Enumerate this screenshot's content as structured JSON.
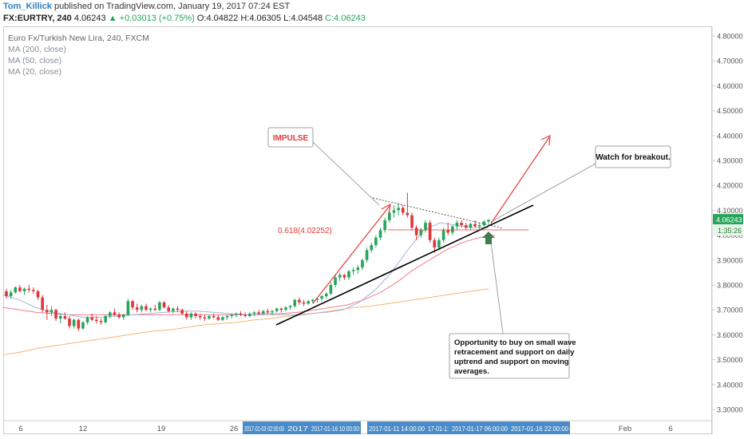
{
  "header": {
    "user": "Tom_Killick",
    "published": "published on TradingView.com, January 19, 2017 07:24 EST",
    "symbol": "FX:EURTRY, 240",
    "last": "4.06243",
    "arrow": "▲",
    "change": "+0.03013 (+0.75%)",
    "open": "O:4.04822",
    "high": "H:4.06305",
    "low": "L:4.04548",
    "close": "C:4.06243"
  },
  "legend": {
    "title": "Euro Fx/Turkish New Lira, 240, FXCM",
    "ma200": "MA (200, close)",
    "ma50": "MA (50, close)",
    "ma20": "MA (20, close)"
  },
  "annotations": {
    "impulse": "IMPULSE",
    "breakout": "Watch for breakout.",
    "opportunity": [
      "Opportunity to buy on small wave",
      "retracement and support on daily",
      "uptrend and support on moving",
      "averages."
    ],
    "fib": "0.618(4.02252)"
  },
  "colors": {
    "up": "#26a65b",
    "down": "#e0363b",
    "ma200": "#f5b574",
    "ma50": "#f07c8c",
    "ma20": "#9fb6df",
    "annotation": "#e53935",
    "axis_label_bg": "#4a8bc8",
    "price_label_bg": "#26a65b"
  },
  "chart_data": {
    "type": "candlestick",
    "y_ticks": [
      "4.80000",
      "4.70000",
      "4.60000",
      "4.50000",
      "4.40000",
      "4.30000",
      "4.20000",
      "4.10000",
      "4.00000",
      "3.90000",
      "3.80000",
      "3.70000",
      "3.60000",
      "3.50000",
      "3.40000",
      "3.30000"
    ],
    "ylim": [
      3.27,
      4.82
    ],
    "x_ticks": [
      "6",
      "12",
      "19",
      "26",
      "Feb",
      "6"
    ],
    "x_highlight_labels": [
      "2017-01-03 02:00:00",
      "2017",
      "2017-01-16 10:00:00",
      "2017-01-11 14:00:00",
      "17-01-1:",
      "2017-01-17 06:00:00",
      "2017-01-16 22:00:00"
    ],
    "last_price": "4.06243",
    "countdown": "1:35:26",
    "fib_level": 4.02252,
    "candles": [
      [
        3.775,
        3.785,
        3.745,
        3.755
      ],
      [
        3.755,
        3.78,
        3.745,
        3.77
      ],
      [
        3.77,
        3.795,
        3.765,
        3.79
      ],
      [
        3.79,
        3.8,
        3.77,
        3.775
      ],
      [
        3.775,
        3.79,
        3.76,
        3.785
      ],
      [
        3.785,
        3.8,
        3.77,
        3.78
      ],
      [
        3.78,
        3.79,
        3.765,
        3.775
      ],
      [
        3.775,
        3.78,
        3.74,
        3.75
      ],
      [
        3.75,
        3.76,
        3.69,
        3.7
      ],
      [
        3.7,
        3.72,
        3.66,
        3.69
      ],
      [
        3.69,
        3.715,
        3.675,
        3.7
      ],
      [
        3.7,
        3.705,
        3.655,
        3.665
      ],
      [
        3.665,
        3.685,
        3.645,
        3.675
      ],
      [
        3.675,
        3.69,
        3.66,
        3.665
      ],
      [
        3.665,
        3.675,
        3.625,
        3.635
      ],
      [
        3.635,
        3.665,
        3.625,
        3.66
      ],
      [
        3.66,
        3.665,
        3.615,
        3.625
      ],
      [
        3.625,
        3.655,
        3.62,
        3.65
      ],
      [
        3.65,
        3.675,
        3.64,
        3.67
      ],
      [
        3.67,
        3.685,
        3.655,
        3.66
      ],
      [
        3.66,
        3.675,
        3.645,
        3.655
      ],
      [
        3.655,
        3.665,
        3.64,
        3.65
      ],
      [
        3.65,
        3.68,
        3.645,
        3.675
      ],
      [
        3.675,
        3.695,
        3.665,
        3.69
      ],
      [
        3.69,
        3.705,
        3.675,
        3.68
      ],
      [
        3.68,
        3.69,
        3.665,
        3.67
      ],
      [
        3.67,
        3.685,
        3.66,
        3.68
      ],
      [
        3.68,
        3.745,
        3.675,
        3.735
      ],
      [
        3.735,
        3.74,
        3.7,
        3.71
      ],
      [
        3.71,
        3.725,
        3.69,
        3.7
      ],
      [
        3.7,
        3.72,
        3.69,
        3.715
      ],
      [
        3.715,
        3.725,
        3.695,
        3.7
      ],
      [
        3.7,
        3.71,
        3.69,
        3.705
      ],
      [
        3.705,
        3.72,
        3.695,
        3.7
      ],
      [
        3.7,
        3.735,
        3.695,
        3.73
      ],
      [
        3.73,
        3.735,
        3.705,
        3.71
      ],
      [
        3.71,
        3.72,
        3.69,
        3.695
      ],
      [
        3.695,
        3.71,
        3.685,
        3.705
      ],
      [
        3.705,
        3.715,
        3.69,
        3.7
      ],
      [
        3.7,
        3.705,
        3.68,
        3.685
      ],
      [
        3.685,
        3.695,
        3.66,
        3.67
      ],
      [
        3.67,
        3.69,
        3.66,
        3.685
      ],
      [
        3.685,
        3.69,
        3.665,
        3.675
      ],
      [
        3.675,
        3.685,
        3.66,
        3.67
      ],
      [
        3.67,
        3.68,
        3.655,
        3.665
      ],
      [
        3.665,
        3.68,
        3.66,
        3.675
      ],
      [
        3.675,
        3.685,
        3.665,
        3.67
      ],
      [
        3.67,
        3.68,
        3.655,
        3.66
      ],
      [
        3.66,
        3.675,
        3.655,
        3.67
      ],
      [
        3.67,
        3.68,
        3.66,
        3.675
      ],
      [
        3.675,
        3.685,
        3.665,
        3.68
      ],
      [
        3.68,
        3.69,
        3.67,
        3.685
      ],
      [
        3.685,
        3.695,
        3.675,
        3.68
      ],
      [
        3.68,
        3.69,
        3.67,
        3.675
      ],
      [
        3.675,
        3.69,
        3.67,
        3.685
      ],
      [
        3.685,
        3.695,
        3.675,
        3.69
      ],
      [
        3.69,
        3.7,
        3.68,
        3.685
      ],
      [
        3.685,
        3.7,
        3.68,
        3.695
      ],
      [
        3.695,
        3.705,
        3.685,
        3.69
      ],
      [
        3.69,
        3.7,
        3.68,
        3.695
      ],
      [
        3.695,
        3.71,
        3.69,
        3.705
      ],
      [
        3.705,
        3.71,
        3.69,
        3.7
      ],
      [
        3.7,
        3.715,
        3.695,
        3.71
      ],
      [
        3.71,
        3.72,
        3.7,
        3.715
      ],
      [
        3.715,
        3.745,
        3.71,
        3.74
      ],
      [
        3.74,
        3.75,
        3.72,
        3.73
      ],
      [
        3.73,
        3.74,
        3.715,
        3.725
      ],
      [
        3.725,
        3.74,
        3.72,
        3.735
      ],
      [
        3.735,
        3.745,
        3.725,
        3.74
      ],
      [
        3.74,
        3.75,
        3.73,
        3.745
      ],
      [
        3.745,
        3.76,
        3.735,
        3.755
      ],
      [
        3.755,
        3.77,
        3.745,
        3.765
      ],
      [
        3.765,
        3.81,
        3.76,
        3.8
      ],
      [
        3.8,
        3.84,
        3.79,
        3.83
      ],
      [
        3.83,
        3.85,
        3.815,
        3.84
      ],
      [
        3.84,
        3.845,
        3.82,
        3.83
      ],
      [
        3.83,
        3.86,
        3.82,
        3.855
      ],
      [
        3.855,
        3.87,
        3.84,
        3.86
      ],
      [
        3.86,
        3.88,
        3.845,
        3.87
      ],
      [
        3.87,
        3.905,
        3.86,
        3.9
      ],
      [
        3.9,
        3.95,
        3.89,
        3.94
      ],
      [
        3.94,
        3.97,
        3.93,
        3.96
      ],
      [
        3.96,
        4.0,
        3.95,
        3.99
      ],
      [
        3.99,
        4.03,
        3.98,
        4.02
      ],
      [
        4.02,
        4.07,
        4.01,
        4.06
      ],
      [
        4.06,
        4.1,
        4.05,
        4.09
      ],
      [
        4.09,
        4.12,
        4.07,
        4.1
      ],
      [
        4.1,
        4.13,
        4.08,
        4.11
      ],
      [
        4.11,
        4.12,
        4.08,
        4.09
      ],
      [
        4.09,
        4.17,
        4.07,
        4.08
      ],
      [
        4.08,
        4.09,
        4.02,
        4.03
      ],
      [
        4.03,
        4.04,
        3.98,
        4.0
      ],
      [
        4.0,
        4.03,
        3.99,
        4.02
      ],
      [
        4.02,
        4.06,
        4.01,
        4.05
      ],
      [
        4.05,
        4.06,
        3.97,
        3.98
      ],
      [
        3.98,
        3.99,
        3.93,
        3.95
      ],
      [
        3.95,
        3.99,
        3.94,
        3.98
      ],
      [
        3.98,
        4.03,
        3.97,
        4.02
      ],
      [
        4.02,
        4.05,
        4.0,
        4.01
      ],
      [
        4.01,
        4.04,
        4.0,
        4.035
      ],
      [
        4.035,
        4.06,
        4.02,
        4.05
      ],
      [
        4.05,
        4.06,
        4.03,
        4.04
      ],
      [
        4.04,
        4.05,
        4.02,
        4.03
      ],
      [
        4.03,
        4.05,
        4.02,
        4.045
      ],
      [
        4.045,
        4.06,
        4.03,
        4.035
      ],
      [
        4.035,
        4.05,
        4.02,
        4.04
      ],
      [
        4.04,
        4.06,
        4.035,
        4.055
      ],
      [
        4.055,
        4.063,
        4.045,
        4.062
      ]
    ],
    "ma20": [
      3.76,
      3.74,
      3.71,
      3.69,
      3.68,
      3.67,
      3.67,
      3.675,
      3.68,
      3.685,
      3.69,
      3.695,
      3.695,
      3.69,
      3.685,
      3.68,
      3.68,
      3.68,
      3.68,
      3.685,
      3.69,
      3.7,
      3.73,
      3.78,
      3.85,
      3.94,
      4.02,
      4.05,
      4.04,
      4.03,
      4.03
    ],
    "ma50": [
      3.71,
      3.7,
      3.69,
      3.685,
      3.68,
      3.68,
      3.68,
      3.68,
      3.68,
      3.68,
      3.68,
      3.68,
      3.68,
      3.68,
      3.68,
      3.68,
      3.685,
      3.685,
      3.69,
      3.7,
      3.71,
      3.72,
      3.74,
      3.77,
      3.81,
      3.86,
      3.9,
      3.94,
      3.97,
      3.99,
      4.0
    ],
    "ma200": [
      3.52,
      3.53,
      3.545,
      3.555,
      3.565,
      3.575,
      3.585,
      3.595,
      3.605,
      3.615,
      3.62,
      3.63,
      3.64,
      3.645,
      3.65,
      3.66,
      3.665,
      3.675,
      3.68,
      3.69,
      3.7,
      3.71,
      3.715,
      3.725,
      3.735,
      3.745,
      3.755,
      3.765,
      3.775,
      3.785
    ]
  }
}
